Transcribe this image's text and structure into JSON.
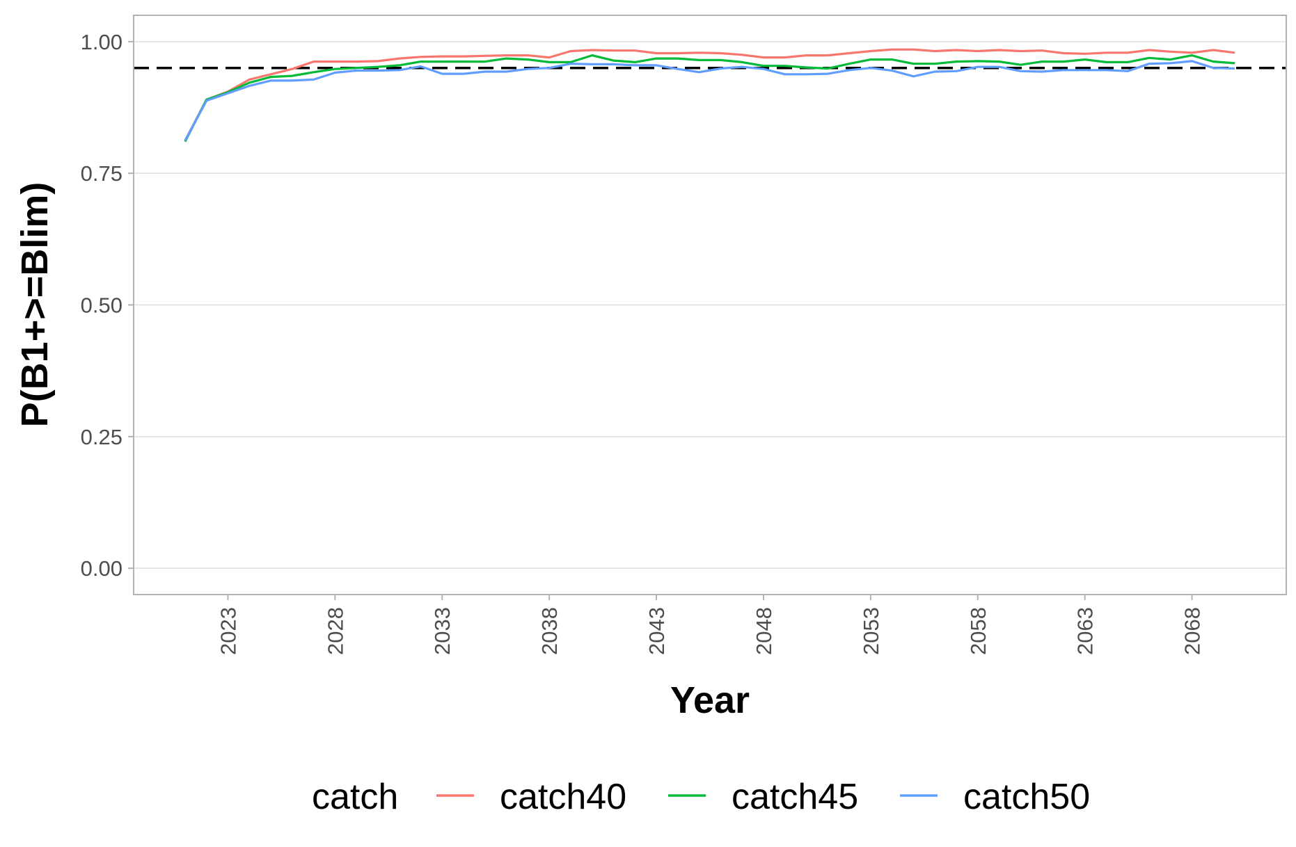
{
  "chart_data": {
    "type": "line",
    "title": "",
    "xlabel": "Year",
    "ylabel": "P(B1+>=Blim)",
    "xlim": [
      2018.6,
      2072.4
    ],
    "ylim": [
      -0.05,
      1.05
    ],
    "x_ticks": [
      2023,
      2028,
      2033,
      2038,
      2043,
      2048,
      2053,
      2058,
      2063,
      2068
    ],
    "x_tick_labels": [
      "2023",
      "2028",
      "2033",
      "2038",
      "2043",
      "2048",
      "2053",
      "2058",
      "2063",
      "2068"
    ],
    "y_ticks": [
      0,
      0.25,
      0.5,
      0.75,
      1
    ],
    "y_tick_labels": [
      "0.00",
      "0.25",
      "0.50",
      "0.75",
      "1.00"
    ],
    "grid": "horizontal",
    "reference_line": {
      "y": 0.95,
      "style": "dashed",
      "color": "#000000"
    },
    "legend": {
      "title": "catch",
      "position": "bottom"
    },
    "x": [
      2021,
      2022,
      2023,
      2024,
      2025,
      2026,
      2027,
      2028,
      2029,
      2030,
      2031,
      2032,
      2033,
      2034,
      2035,
      2036,
      2037,
      2038,
      2039,
      2040,
      2041,
      2042,
      2043,
      2044,
      2045,
      2046,
      2047,
      2048,
      2049,
      2050,
      2051,
      2052,
      2053,
      2054,
      2055,
      2056,
      2057,
      2058,
      2059,
      2060,
      2061,
      2062,
      2063,
      2064,
      2065,
      2066,
      2067,
      2068,
      2069,
      2070
    ],
    "series": [
      {
        "name": "catch40",
        "color": "#F8766D",
        "values": [
          0.812,
          0.89,
          0.905,
          0.928,
          0.938,
          0.948,
          0.962,
          0.962,
          0.962,
          0.963,
          0.968,
          0.971,
          0.972,
          0.972,
          0.973,
          0.974,
          0.974,
          0.97,
          0.982,
          0.984,
          0.983,
          0.983,
          0.978,
          0.978,
          0.979,
          0.978,
          0.975,
          0.97,
          0.97,
          0.974,
          0.974,
          0.978,
          0.982,
          0.985,
          0.985,
          0.982,
          0.984,
          0.982,
          0.984,
          0.982,
          0.983,
          0.978,
          0.977,
          0.979,
          0.979,
          0.984,
          0.981,
          0.979,
          0.984,
          0.979
        ]
      },
      {
        "name": "catch45",
        "color": "#00BA38",
        "values": [
          0.81,
          0.89,
          0.904,
          0.922,
          0.933,
          0.935,
          0.942,
          0.948,
          0.95,
          0.952,
          0.955,
          0.962,
          0.962,
          0.962,
          0.962,
          0.968,
          0.966,
          0.961,
          0.961,
          0.974,
          0.964,
          0.961,
          0.968,
          0.968,
          0.965,
          0.965,
          0.961,
          0.954,
          0.954,
          0.951,
          0.949,
          0.958,
          0.966,
          0.966,
          0.958,
          0.958,
          0.962,
          0.963,
          0.962,
          0.956,
          0.962,
          0.962,
          0.966,
          0.961,
          0.961,
          0.969,
          0.966,
          0.974,
          0.962,
          0.959
        ]
      },
      {
        "name": "catch50",
        "color": "#619CFF",
        "values": [
          0.812,
          0.888,
          0.902,
          0.916,
          0.926,
          0.926,
          0.928,
          0.941,
          0.945,
          0.945,
          0.946,
          0.953,
          0.939,
          0.939,
          0.943,
          0.943,
          0.948,
          0.95,
          0.958,
          0.957,
          0.957,
          0.955,
          0.955,
          0.948,
          0.942,
          0.949,
          0.952,
          0.948,
          0.938,
          0.938,
          0.939,
          0.946,
          0.95,
          0.945,
          0.934,
          0.943,
          0.944,
          0.952,
          0.952,
          0.944,
          0.943,
          0.946,
          0.946,
          0.946,
          0.944,
          0.958,
          0.959,
          0.963,
          0.95,
          0.949
        ]
      }
    ]
  }
}
